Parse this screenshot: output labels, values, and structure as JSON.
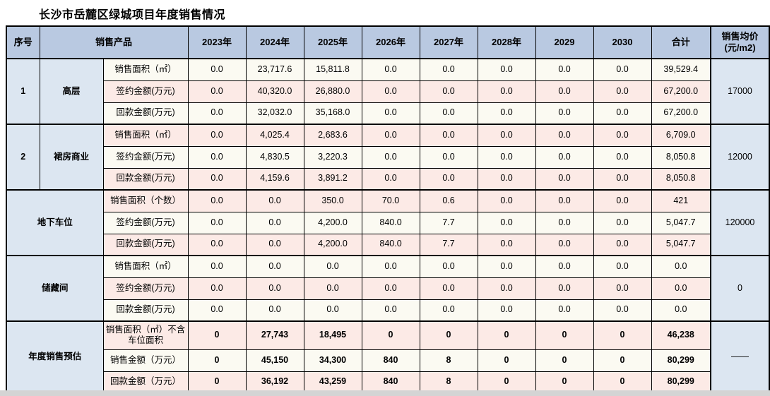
{
  "title": "长沙市岳麓区绿城项目年度销售情况",
  "palette": {
    "header_bg": "#b9c9e1",
    "label_bg": "#dce6f1",
    "row_cream": "#fbfaf2",
    "row_pink": "#fceae6",
    "border": "#000000",
    "bottom_strip": "#d4d4d4"
  },
  "table": {
    "header": {
      "seq": "序号",
      "product": "销售产品",
      "years": [
        "2023年",
        "2024年",
        "2025年",
        "2026年",
        "2027年",
        "2028年",
        "2029",
        "2030"
      ],
      "total": "合计",
      "avg_price": [
        "销售均价",
        "(元/m2)"
      ]
    },
    "groups": [
      {
        "seq": "1",
        "name": "高层",
        "avg_price": "17000",
        "rows": [
          {
            "metric": "销售面积（㎡）",
            "tint": "cream",
            "values": [
              "0.0",
              "23,717.6",
              "15,811.8",
              "0.0",
              "0.0",
              "0.0",
              "0.0",
              "0.0"
            ],
            "total": "39,529.4"
          },
          {
            "metric": "签约金额(万元)",
            "tint": "pink",
            "values": [
              "0.0",
              "40,320.0",
              "26,880.0",
              "0.0",
              "0.0",
              "0.0",
              "0.0",
              "0.0"
            ],
            "total": "67,200.0"
          },
          {
            "metric": "回款金额(万元)",
            "tint": "cream",
            "values": [
              "0.0",
              "32,032.0",
              "35,168.0",
              "0.0",
              "0.0",
              "0.0",
              "0.0",
              "0.0"
            ],
            "total": "67,200.0"
          }
        ]
      },
      {
        "seq": "2",
        "name": "裙房商业",
        "avg_price": "12000",
        "rows": [
          {
            "metric": "销售面积（㎡）",
            "tint": "pink",
            "values": [
              "0.0",
              "4,025.4",
              "2,683.6",
              "0.0",
              "0.0",
              "0.0",
              "0.0",
              "0.0"
            ],
            "total": "6,709.0"
          },
          {
            "metric": "签约金额(万元)",
            "tint": "cream",
            "values": [
              "0.0",
              "4,830.5",
              "3,220.3",
              "0.0",
              "0.0",
              "0.0",
              "0.0",
              "0.0"
            ],
            "total": "8,050.8"
          },
          {
            "metric": "回款金额(万元)",
            "tint": "pink",
            "values": [
              "0.0",
              "4,159.6",
              "3,891.2",
              "0.0",
              "0.0",
              "0.0",
              "0.0",
              "0.0"
            ],
            "total": "8,050.8"
          }
        ]
      },
      {
        "seq": null,
        "name": "地下车位",
        "avg_price": "120000",
        "rows": [
          {
            "metric": "销售面积（个数）",
            "tint": "pink",
            "values": [
              "0.0",
              "0.0",
              "350.0",
              "70.0",
              "0.6",
              "0.0",
              "0.0",
              "0.0"
            ],
            "total": "421"
          },
          {
            "metric": "签约金额(万元)",
            "tint": "cream",
            "values": [
              "0.0",
              "0.0",
              "4,200.0",
              "840.0",
              "7.7",
              "0.0",
              "0.0",
              "0.0"
            ],
            "total": "5,047.7"
          },
          {
            "metric": "回款金额(万元)",
            "tint": "pink",
            "values": [
              "0.0",
              "0.0",
              "4,200.0",
              "840.0",
              "7.7",
              "0.0",
              "0.0",
              "0.0"
            ],
            "total": "5,047.7"
          }
        ]
      },
      {
        "seq": null,
        "name": "储藏间",
        "avg_price": "0",
        "rows": [
          {
            "metric": "销售面积（㎡）",
            "tint": "cream",
            "values": [
              "0.0",
              "0.0",
              "0.0",
              "0.0",
              "0.0",
              "0.0",
              "0.0",
              "0.0"
            ],
            "total": "0.0"
          },
          {
            "metric": "签约金额(万元)",
            "tint": "pink",
            "values": [
              "0.0",
              "0.0",
              "0.0",
              "0.0",
              "0.0",
              "0.0",
              "0.0",
              "0.0"
            ],
            "total": "0.0"
          },
          {
            "metric": "回款金额(万元)",
            "tint": "cream",
            "values": [
              "0.0",
              "0.0",
              "0.0",
              "0.0",
              "0.0",
              "0.0",
              "0.0",
              "0.0"
            ],
            "total": "0.0"
          }
        ]
      },
      {
        "seq": null,
        "name": "年度销售预估",
        "avg_price": "——",
        "values_bold": true,
        "rows": [
          {
            "metric": "销售面积（㎡）不含车位面积",
            "tint": "pink",
            "tall": true,
            "values": [
              "0",
              "27,743",
              "18,495",
              "0",
              "0",
              "0",
              "0",
              "0"
            ],
            "total": "46,238"
          },
          {
            "metric": "销售金额（万元）",
            "tint": "cream",
            "values": [
              "0",
              "45,150",
              "34,300",
              "840",
              "8",
              "0",
              "0",
              "0"
            ],
            "total": "80,299"
          },
          {
            "metric": "回款金额（万元）",
            "tint": "pink",
            "values": [
              "0",
              "36,192",
              "43,259",
              "840",
              "8",
              "0",
              "0",
              "0"
            ],
            "total": "80,299"
          }
        ]
      }
    ]
  }
}
